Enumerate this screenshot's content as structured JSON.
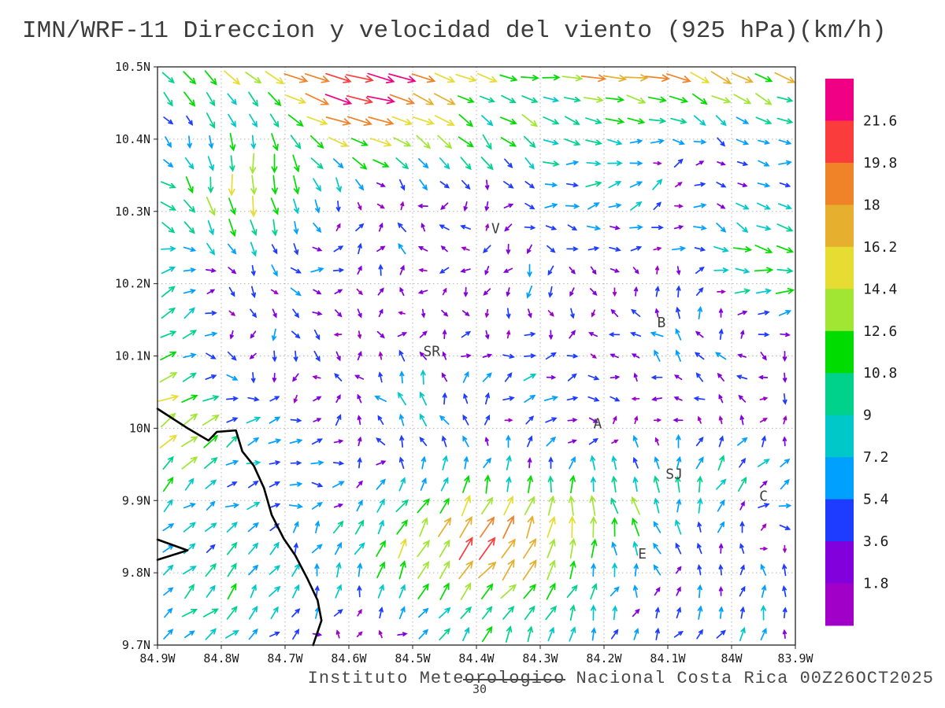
{
  "title": "IMN/WRF-11 Direccion y velocidad del viento (925 hPa)(km/h)",
  "footer": "Instituto Meteorologico Nacional Costa Rica 00Z26OCT2025",
  "page_number": "30",
  "chart_data": {
    "type": "quiver",
    "title": "IMN/WRF-11 Direccion y velocidad del viento (925 hPa)(km/h)",
    "model": "IMN/WRF-11",
    "variable": "Direccion y velocidad del viento",
    "level_hpa": 925,
    "units": "km/h",
    "valid_time": "00Z26OCT2025",
    "extent": {
      "lon_west": 84.9,
      "lon_east": 83.9,
      "lat_south": 9.7,
      "lat_north": 10.5
    },
    "lon_tick_labels": [
      "84.9W",
      "84.8W",
      "84.7W",
      "84.6W",
      "84.5W",
      "84.4W",
      "84.3W",
      "84.2W",
      "84.1W",
      "84W",
      "83.9W"
    ],
    "lon_tick_values": [
      84.9,
      84.8,
      84.7,
      84.6,
      84.5,
      84.4,
      84.3,
      84.2,
      84.1,
      84.0,
      83.9
    ],
    "lat_tick_labels": [
      "10.5N",
      "10.4N",
      "10.3N",
      "10.2N",
      "10.1N",
      "10N",
      "9.9N",
      "9.8N",
      "9.7N"
    ],
    "lat_tick_values": [
      10.5,
      10.4,
      10.3,
      10.2,
      10.1,
      10.0,
      9.9,
      9.8,
      9.7
    ],
    "speed_levels_kmh": [
      1.8,
      3.6,
      5.4,
      7.2,
      9,
      10.8,
      12.6,
      14.4,
      16.2,
      18,
      19.8,
      21.6
    ],
    "colorbar_labels_top_to_bottom": [
      "21.6",
      "19.8",
      "18",
      "16.2",
      "14.4",
      "12.6",
      "10.8",
      "9",
      "7.2",
      "5.4",
      "3.6",
      "1.8"
    ],
    "palette_low_to_high": [
      "#a000c8",
      "#8200dc",
      "#1e3cff",
      "#00a0ff",
      "#00c8c8",
      "#00d28c",
      "#00dc00",
      "#a0e632",
      "#e6dc32",
      "#e6af2d",
      "#f08228",
      "#fa3c3c",
      "#f00082"
    ],
    "city_labels": [
      {
        "label": "V",
        "lon_w": 84.37,
        "lat_n": 10.27
      },
      {
        "label": "B",
        "lon_w": 84.11,
        "lat_n": 10.14
      },
      {
        "label": "SR",
        "lon_w": 84.47,
        "lat_n": 10.1
      },
      {
        "label": "A",
        "lon_w": 84.21,
        "lat_n": 10.0
      },
      {
        "label": "SJ",
        "lon_w": 84.09,
        "lat_n": 9.93
      },
      {
        "label": "C",
        "lon_w": 83.95,
        "lat_n": 9.9
      },
      {
        "label": "E",
        "lon_w": 84.14,
        "lat_n": 9.82
      }
    ],
    "coastline_lonlat": [
      [
        84.9,
        10.027
      ],
      [
        84.851,
        9.999
      ],
      [
        84.82,
        9.983
      ],
      [
        84.807,
        9.995
      ],
      [
        84.777,
        9.997
      ],
      [
        84.767,
        9.968
      ],
      [
        84.749,
        9.948
      ],
      [
        84.733,
        9.917
      ],
      [
        84.721,
        9.88
      ],
      [
        84.702,
        9.847
      ],
      [
        84.684,
        9.824
      ],
      [
        84.665,
        9.792
      ],
      [
        84.649,
        9.762
      ],
      [
        84.643,
        9.734
      ],
      [
        84.656,
        9.7
      ]
    ],
    "peninsula_lonlat": [
      [
        84.9,
        9.846
      ],
      [
        84.853,
        9.831
      ],
      [
        84.9,
        9.818
      ]
    ],
    "vector_grid": {
      "cols": 30,
      "rows": 27
    },
    "field_components": [
      {
        "comp": "u",
        "amp": 18,
        "cx": 0.65,
        "wx": 0.5,
        "cy": 1.06,
        "wy": 0.04
      },
      {
        "comp": "v",
        "amp": -4,
        "cx": 0.5,
        "wx": 0.3,
        "cy": 1.0,
        "wy": 0.03
      },
      {
        "comp": "u",
        "amp": 6,
        "cx": 0.3,
        "wx": 0.02,
        "cy": 0.96,
        "wy": 0.02
      },
      {
        "comp": "v",
        "amp": -6,
        "cx": 0.3,
        "wx": 0.02,
        "cy": 0.96,
        "wy": 0.02
      },
      {
        "comp": "v",
        "amp": -9,
        "cx": 0.13,
        "wx": 0.025,
        "cy": 0.8,
        "wy": 0.03
      },
      {
        "comp": "u",
        "amp": 13,
        "cx": 0.0,
        "wx": 0.012,
        "cy": 0.45,
        "wy": 0.1
      },
      {
        "comp": "v",
        "amp": 5,
        "cx": 0.0,
        "wx": 0.012,
        "cy": 0.5,
        "wy": 0.1
      },
      {
        "comp": "u",
        "amp": 7,
        "cx": 0.42,
        "wx": 0.08,
        "cy": 0.13,
        "wy": 0.035
      },
      {
        "comp": "v",
        "amp": 9,
        "cx": 0.45,
        "wx": 0.12,
        "cy": 0.15,
        "wy": 0.045
      },
      {
        "comp": "v",
        "amp": 8,
        "cx": 0.68,
        "wx": 0.03,
        "cy": 0.2,
        "wy": 0.03
      },
      {
        "comp": "u",
        "amp": 11,
        "cx": 0.97,
        "wx": 0.02,
        "cy": 0.7,
        "wy": 0.012
      }
    ],
    "noise": {
      "swirl_amp": 4.5,
      "jitter_amp": 5,
      "seed": 20251026
    }
  }
}
